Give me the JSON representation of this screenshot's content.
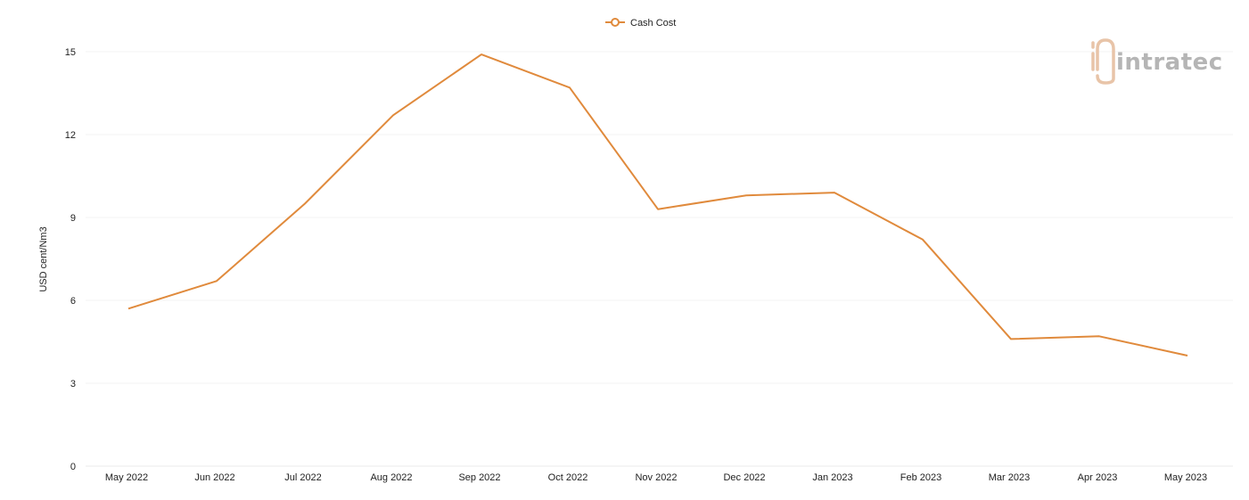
{
  "logo": {
    "text": "intratec",
    "accent_color": "#e8c4a8",
    "text_color": "#b5b5b5"
  },
  "chart_data": {
    "type": "line",
    "title": "",
    "xlabel": "",
    "ylabel": "USD cent/Nm3",
    "categories": [
      "May 2022",
      "Jun 2022",
      "Jul 2022",
      "Aug 2022",
      "Sep 2022",
      "Oct 2022",
      "Nov 2022",
      "Dec 2022",
      "Jan 2023",
      "Feb 2023",
      "Mar 2023",
      "Apr 2023",
      "May 2023"
    ],
    "series": [
      {
        "name": "Cash Cost",
        "color": "#e08a3c",
        "values": [
          5.7,
          6.7,
          9.5,
          12.7,
          14.9,
          13.7,
          9.3,
          9.8,
          9.9,
          8.2,
          4.6,
          4.7,
          4.0
        ]
      }
    ],
    "ylim": [
      0,
      15
    ],
    "yticks": [
      0,
      3,
      6,
      9,
      12,
      15
    ],
    "grid": true,
    "legend_position": "top-center"
  }
}
